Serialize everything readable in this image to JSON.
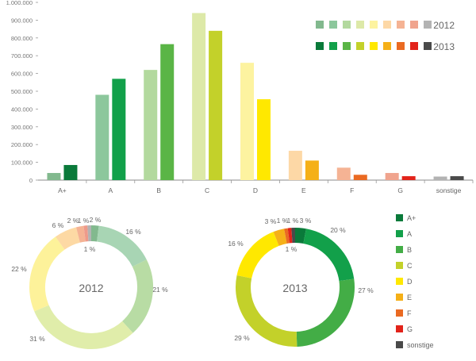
{
  "chart_data": [
    {
      "type": "bar",
      "categories": [
        "A+",
        "A",
        "B",
        "C",
        "D",
        "E",
        "F",
        "G",
        "sonstige"
      ],
      "ylim": [
        0,
        1000000
      ],
      "yticks": [
        "0",
        "100.000",
        "200.000",
        "300.000",
        "400.000",
        "500.000",
        "600.000",
        "700.000",
        "800.000",
        "900.000",
        "1.000.000"
      ],
      "series": [
        {
          "name": "2012",
          "values": [
            40000,
            480000,
            620000,
            940000,
            660000,
            165000,
            70000,
            40000,
            20000
          ],
          "colors": [
            "#82b98e",
            "#8cc79c",
            "#b3d99e",
            "#dde9a8",
            "#fdf3a0",
            "#fdd8a6",
            "#f5b394",
            "#f0a48e",
            "#b3b3b3"
          ]
        },
        {
          "name": "2013",
          "values": [
            85000,
            570000,
            765000,
            840000,
            455000,
            110000,
            30000,
            22000,
            22000
          ],
          "colors": [
            "#0a7a3a",
            "#12a04a",
            "#5ab546",
            "#c3d12a",
            "#ffe800",
            "#f5b018",
            "#ea6a22",
            "#e2231a",
            "#4a4a4a"
          ]
        }
      ],
      "grid": false,
      "legend": "top-right"
    },
    {
      "type": "pie",
      "title": "2012",
      "labels": [
        "A+",
        "A",
        "B",
        "C",
        "D",
        "E",
        "F",
        "G",
        "sonstige"
      ],
      "values": [
        2,
        16,
        21,
        31,
        22,
        6,
        2,
        1,
        1
      ],
      "value_labels": [
        "2 %",
        "16 %",
        "21 %",
        "31 %",
        "22 %",
        "6 %",
        "2 %",
        "1 %",
        "1 %"
      ],
      "colors": [
        "#82b98e",
        "#a8d5b4",
        "#b8dca4",
        "#e0edaa",
        "#fdf29a",
        "#fdd9a4",
        "#f5b394",
        "#ee9a8a",
        "#b3b3b3"
      ]
    },
    {
      "type": "pie",
      "title": "2013",
      "labels": [
        "A+",
        "A",
        "B",
        "C",
        "D",
        "E",
        "F",
        "G",
        "sonstige"
      ],
      "values": [
        3,
        20,
        27,
        29,
        16,
        3,
        1,
        1,
        1
      ],
      "value_labels": [
        "3 %",
        "20 %",
        "27 %",
        "29 %",
        "16 %",
        "3 %",
        "1 %",
        "1 %",
        "1 %"
      ],
      "colors": [
        "#0a7a3a",
        "#12a04a",
        "#43ad46",
        "#c3d12a",
        "#ffe800",
        "#f5b018",
        "#ea6a22",
        "#e2231a",
        "#4a4a4a"
      ]
    }
  ],
  "legend": {
    "years": [
      "2012",
      "2013"
    ],
    "items": [
      "A+",
      "A",
      "B",
      "C",
      "D",
      "E",
      "F",
      "G",
      "sonstige"
    ]
  }
}
